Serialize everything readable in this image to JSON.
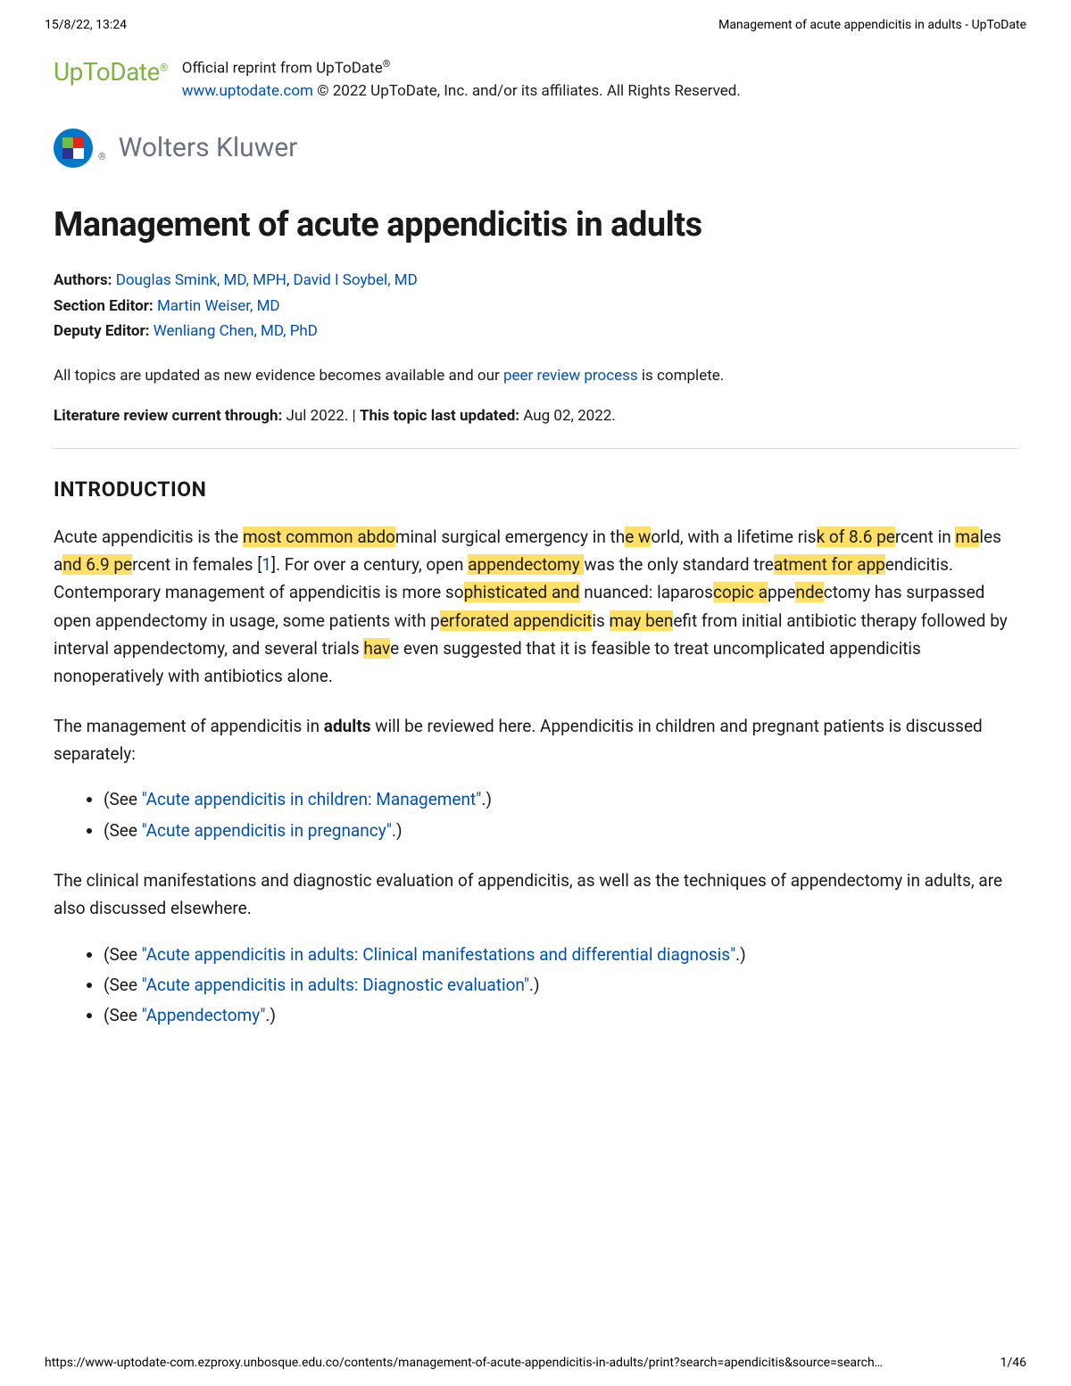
{
  "print_header": {
    "timestamp": "15/8/22, 13:24",
    "doc_title": "Management of acute appendicitis in adults - UpToDate"
  },
  "logo": {
    "brand": "UpToDate",
    "reg": "®"
  },
  "reprint": {
    "line1_prefix": "Official reprint from UpToDate",
    "reg": "®",
    "url": "www.uptodate.com",
    "copyright": " © 2022 UpToDate, Inc. and/or its affiliates. All Rights Reserved."
  },
  "wolters": {
    "reg": "®",
    "name": "Wolters Kluwer"
  },
  "title": "Management of acute appendicitis in adults",
  "meta": {
    "authors_label": "Authors:",
    "author1": "Douglas Smink, MD, MPH",
    "author_sep": ", ",
    "author2": "David I Soybel, MD",
    "section_label": "Section Editor:",
    "section_editor": "Martin Weiser, MD",
    "deputy_label": "Deputy Editor:",
    "deputy_editor": "Wenliang Chen, MD, PhD"
  },
  "update_note": {
    "prefix": "All topics are updated as new evidence becomes available and our ",
    "link": "peer review process",
    "suffix": " is complete."
  },
  "lit": {
    "label1": "Literature review current through: ",
    "val1": "Jul 2022.",
    "sep": " | ",
    "label2": "This topic last updated: ",
    "val2": "Aug 02, 2022."
  },
  "section_heading": "INTRODUCTION",
  "intro": {
    "t1": "Acute appendicitis is the ",
    "h1": "most common abdo",
    "t2": "minal surgical emergency in th",
    "h2": "e w",
    "t3": "orld, with a lifetime ris",
    "h3": "k of 8.6 pe",
    "t4": "rcent in ",
    "h4": "ma",
    "t5": "les a",
    "h5": "nd 6.9 pe",
    "t6": "rcent in females [",
    "ref1": "1",
    "t7": "]. For over a century, open ",
    "h6": "appendectomy ",
    "t8": "was the only standard tre",
    "h7": "atment for app",
    "t9": "endicitis. Contemporary management of appendicitis is more so",
    "h8": "phisticated and",
    "t10": " nuanced: laparos",
    "h9": "copic a",
    "t11": "ppe",
    "h10": "nde",
    "t12": "ctomy has surpassed open appendectomy in usage, some patients with p",
    "h11": "erforated appendicit",
    "t13": "is ",
    "h12": "may ben",
    "t14": "efit from initial antibiotic therapy followed by interval appendectomy, and several trials ",
    "h13": "hav",
    "t15": "e even suggested that it is feasible to treat uncomplicated appendicitis nonoperatively with antibiotics alone."
  },
  "para2": {
    "t1": "The management of appendicitis in ",
    "b1": "adults",
    "t2": " will be reviewed here. Appendicitis in children and pregnant patients is discussed separately:"
  },
  "list1": {
    "item1_link": "\"Acute appendicitis in children: Management\"",
    "item2_link": "\"Acute appendicitis in pregnancy\""
  },
  "para3": "The clinical manifestations and diagnostic evaluation of appendicitis, as well as the techniques of appendectomy in adults, are also discussed elsewhere.",
  "list2": {
    "item1_link": "\"Acute appendicitis in adults: Clinical manifestations and differential diagnosis\"",
    "item2_link": "\"Acute appendicitis in adults: Diagnostic evaluation\"",
    "item3_link": "\"Appendectomy\""
  },
  "see_prefix": "(See ",
  "see_suffix": ".)",
  "footer": {
    "url": "https://www-uptodate-com.ezproxy.unbosque.edu.co/contents/management-of-acute-appendicitis-in-adults/print?search=apendicitis&source=search…",
    "page": "1/46"
  },
  "colors": {
    "link": "#0050b3",
    "highlight": "#ffe066",
    "logo_green": "#7cb342",
    "wk_grey": "#6b7280",
    "wk_blue": "#0077c8"
  }
}
